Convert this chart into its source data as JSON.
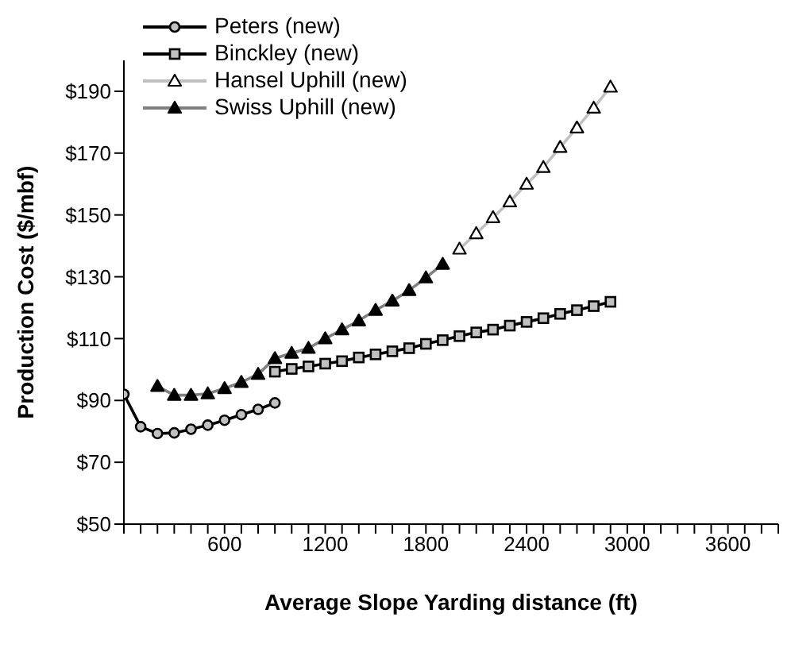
{
  "chart_data": {
    "type": "line",
    "xlabel": "Average Slope Yarding distance (ft)",
    "ylabel": "Production Cost ($/mbf)",
    "xlim": [
      0,
      3900
    ],
    "xticks": [
      {
        "value": 0,
        "label": null
      },
      {
        "value": 100,
        "label": null
      },
      {
        "value": 200,
        "label": null
      },
      {
        "value": 300,
        "label": null
      },
      {
        "value": 400,
        "label": null
      },
      {
        "value": 500,
        "label": null
      },
      600,
      {
        "value": 700,
        "label": null
      },
      {
        "value": 800,
        "label": null
      },
      {
        "value": 900,
        "label": null
      },
      {
        "value": 1000,
        "label": null
      },
      {
        "value": 1100,
        "label": null
      },
      1200,
      {
        "value": 1300,
        "label": null
      },
      {
        "value": 1400,
        "label": null
      },
      {
        "value": 1500,
        "label": null
      },
      {
        "value": 1600,
        "label": null
      },
      {
        "value": 1700,
        "label": null
      },
      1800,
      {
        "value": 1900,
        "label": null
      },
      {
        "value": 2000,
        "label": null
      },
      {
        "value": 2100,
        "label": null
      },
      {
        "value": 2200,
        "label": null
      },
      {
        "value": 2300,
        "label": null
      },
      2400,
      {
        "value": 2500,
        "label": null
      },
      {
        "value": 2600,
        "label": null
      },
      {
        "value": 2700,
        "label": null
      },
      {
        "value": 2800,
        "label": null
      },
      {
        "value": 2900,
        "label": null
      },
      3000,
      {
        "value": 3100,
        "label": null
      },
      {
        "value": 3200,
        "label": null
      },
      {
        "value": 3300,
        "label": null
      },
      {
        "value": 3400,
        "label": null
      },
      {
        "value": 3500,
        "label": null
      },
      3600,
      {
        "value": 3700,
        "label": null
      },
      {
        "value": 3800,
        "label": null
      },
      {
        "value": 3900,
        "label": null
      }
    ],
    "ylim": [
      50,
      200
    ],
    "yticks": [
      {
        "value": 50,
        "label": "$50"
      },
      {
        "value": 70,
        "label": "$70"
      },
      {
        "value": 90,
        "label": "$90"
      },
      {
        "value": 110,
        "label": "$110"
      },
      {
        "value": 130,
        "label": "$130"
      },
      {
        "value": 150,
        "label": "$150"
      },
      {
        "value": 170,
        "label": "$170"
      },
      {
        "value": 190,
        "label": "$190"
      }
    ],
    "grid": false,
    "legend": "top left",
    "line_style": "solid",
    "series": [
      {
        "name": "Peters (new)",
        "color": "#000000",
        "marker": "circle",
        "x": [
          0,
          100,
          200,
          300,
          400,
          500,
          600,
          700,
          800,
          900
        ],
        "values": [
          92,
          81.5,
          79.3,
          79.5,
          80.7,
          82,
          83.6,
          85.4,
          87.1,
          89.2
        ]
      },
      {
        "name": "Binckley (new)",
        "color": "#000000",
        "marker": "square",
        "x": [
          900,
          1000,
          1100,
          1200,
          1300,
          1400,
          1500,
          1600,
          1700,
          1800,
          1900,
          2000,
          2100,
          2200,
          2300,
          2400,
          2500,
          2600,
          2700,
          2800,
          2900
        ],
        "values": [
          99.3,
          100.2,
          101,
          101.9,
          102.7,
          103.9,
          104.9,
          105.9,
          106.9,
          108.3,
          109.5,
          110.8,
          112,
          112.9,
          114.2,
          115.4,
          116.6,
          118,
          119.2,
          120.5,
          121.9
        ]
      },
      {
        "name": "Hansel Uphill (new)",
        "color": "#c0c0c0",
        "marker": "triangle",
        "x": [
          2000,
          2100,
          2200,
          2300,
          2400,
          2500,
          2600,
          2700,
          2800,
          2900
        ],
        "values": [
          139,
          144,
          149.2,
          154.3,
          160,
          165.4,
          171.9,
          178.2,
          184.6,
          191.4
        ]
      },
      {
        "name": "Swiss Uphill (new)",
        "color": "#808080",
        "marker": "triangle",
        "x": [
          200,
          300,
          400,
          500,
          600,
          700,
          800,
          900,
          1000,
          1100,
          1200,
          1300,
          1400,
          1500,
          1600,
          1700,
          1800,
          1900
        ],
        "values": [
          94.6,
          91.7,
          91.7,
          92.2,
          93.9,
          95.9,
          98.5,
          103.6,
          105.3,
          106.9,
          110,
          112.9,
          115.8,
          119.2,
          122.2,
          125.6,
          129.7,
          134.1
        ]
      }
    ]
  }
}
